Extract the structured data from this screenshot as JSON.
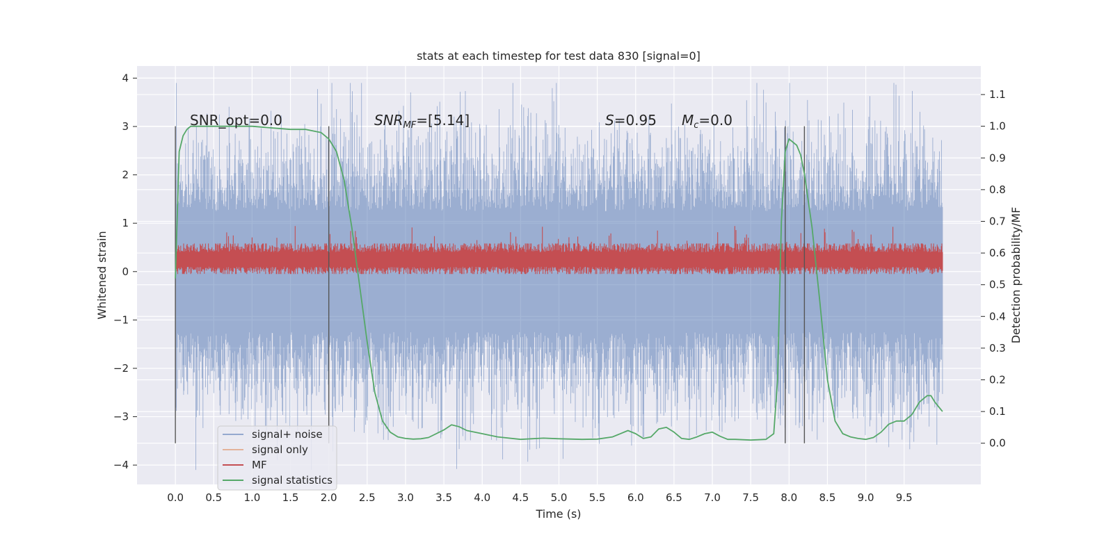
{
  "chart_data": {
    "type": "line",
    "title": "stats at each timestep for test data 830 [signal=0]",
    "xlabel": "Time (s)",
    "ylabel": "Whitened strain",
    "y2label": "Detection probability/MF",
    "xlim": [
      -0.5,
      10.5
    ],
    "ylim": [
      -4.4,
      4.25
    ],
    "y2lim": [
      -0.13,
      1.19
    ],
    "x_ticks": [
      "0.0",
      "0.5",
      "1.0",
      "1.5",
      "2.0",
      "2.5",
      "3.0",
      "3.5",
      "4.0",
      "4.5",
      "5.0",
      "5.5",
      "6.0",
      "6.5",
      "7.0",
      "7.5",
      "8.0",
      "8.5",
      "9.0",
      "9.5"
    ],
    "y_ticks": [
      "4",
      "3",
      "2",
      "1",
      "0",
      "−1",
      "−2",
      "−3",
      "−4"
    ],
    "y2_ticks": [
      "1.1",
      "1.0",
      "0.9",
      "0.8",
      "0.7",
      "0.6",
      "0.5",
      "0.4",
      "0.3",
      "0.2",
      "0.1",
      "0.0"
    ],
    "grid": true,
    "legend_position": "lower-left",
    "annotations": {
      "snr_opt": "SNR_opt=0.0",
      "snr_mf_symbol": "SNR",
      "snr_mf_sub": "MF",
      "snr_mf_value": "=[5.14]",
      "s_symbol": "S",
      "s_value": "=0.95",
      "mc_symbol": "M",
      "mc_sub": "c",
      "mc_value": "=0.0"
    },
    "vertical_lines": [
      0.0,
      2.0,
      7.95,
      8.2
    ],
    "series": [
      {
        "name": "signal+ noise",
        "color": "#4c72b0",
        "axis": "left",
        "kind": "noise",
        "x_range": [
          0,
          10
        ],
        "envelope_upper": 3.9,
        "envelope_lower": -4.1
      },
      {
        "name": "signal only",
        "color": "#dd8452",
        "axis": "left",
        "values": [
          0,
          0
        ]
      },
      {
        "name": "MF",
        "color": "#c44e52",
        "axis": "left",
        "kind": "band",
        "x_range": [
          0,
          10
        ],
        "baseline": 0.25,
        "spread": 0.25
      },
      {
        "name": "signal statistics",
        "color": "#55a868",
        "axis": "right",
        "x": [
          0.0,
          0.05,
          0.1,
          0.15,
          0.2,
          0.3,
          0.5,
          1.0,
          1.5,
          1.7,
          1.9,
          2.0,
          2.1,
          2.2,
          2.3,
          2.4,
          2.5,
          2.6,
          2.7,
          2.8,
          2.9,
          3.0,
          3.1,
          3.2,
          3.3,
          3.5,
          3.6,
          3.7,
          3.8,
          4.0,
          4.2,
          4.5,
          4.8,
          5.0,
          5.3,
          5.5,
          5.7,
          5.9,
          6.0,
          6.1,
          6.2,
          6.3,
          6.4,
          6.5,
          6.6,
          6.7,
          6.8,
          6.9,
          7.0,
          7.1,
          7.2,
          7.3,
          7.5,
          7.7,
          7.8,
          7.85,
          7.9,
          7.95,
          8.0,
          8.05,
          8.1,
          8.15,
          8.2,
          8.3,
          8.4,
          8.5,
          8.6,
          8.7,
          8.8,
          8.9,
          9.0,
          9.1,
          9.2,
          9.3,
          9.4,
          9.5,
          9.6,
          9.7,
          9.8,
          9.85,
          9.9,
          10.0
        ],
        "values": [
          0.52,
          0.92,
          0.97,
          0.99,
          1.0,
          1.0,
          1.0,
          1.0,
          0.99,
          0.99,
          0.98,
          0.96,
          0.92,
          0.83,
          0.68,
          0.5,
          0.32,
          0.16,
          0.07,
          0.035,
          0.02,
          0.015,
          0.013,
          0.014,
          0.018,
          0.042,
          0.058,
          0.052,
          0.04,
          0.03,
          0.02,
          0.012,
          0.016,
          0.014,
          0.012,
          0.013,
          0.02,
          0.04,
          0.03,
          0.015,
          0.02,
          0.045,
          0.05,
          0.035,
          0.015,
          0.012,
          0.02,
          0.03,
          0.035,
          0.022,
          0.012,
          0.012,
          0.01,
          0.012,
          0.03,
          0.2,
          0.7,
          0.92,
          0.96,
          0.95,
          0.94,
          0.91,
          0.85,
          0.68,
          0.45,
          0.2,
          0.07,
          0.03,
          0.02,
          0.015,
          0.012,
          0.018,
          0.035,
          0.06,
          0.07,
          0.07,
          0.09,
          0.13,
          0.15,
          0.15,
          0.13,
          0.1
        ]
      }
    ]
  }
}
